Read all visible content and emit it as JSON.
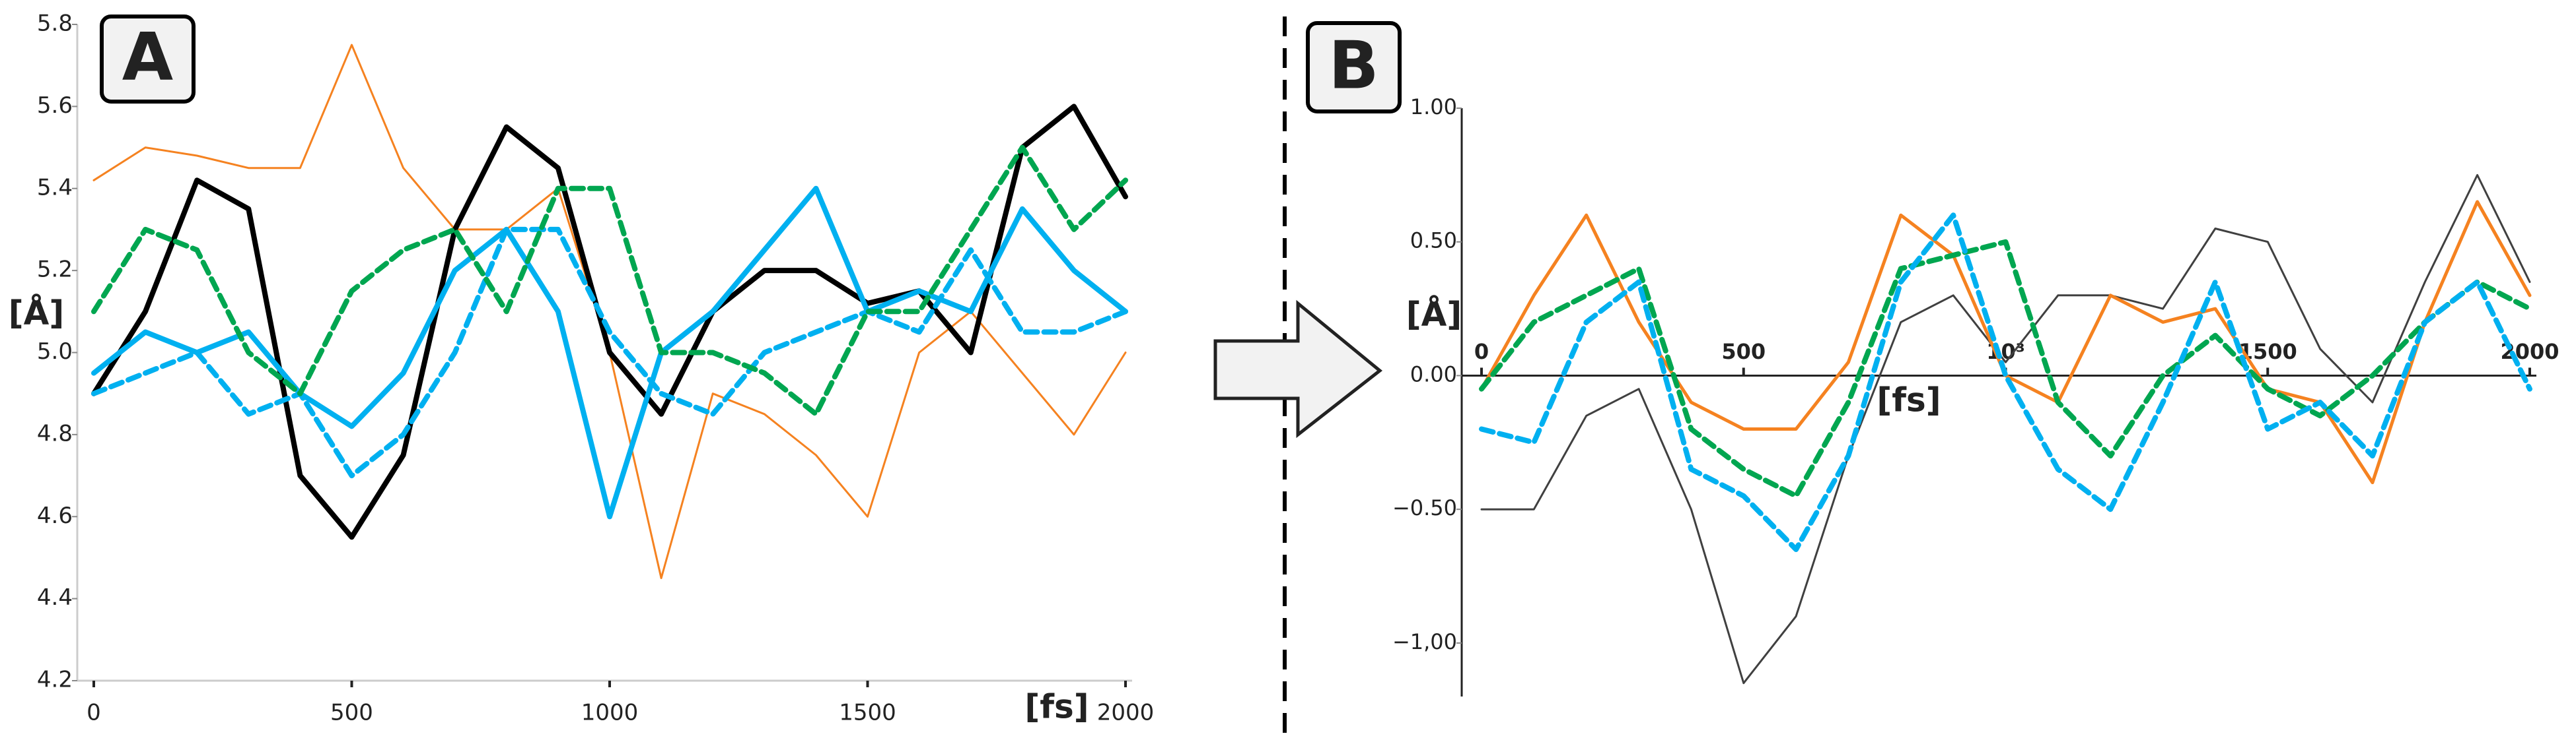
{
  "chart_data": [
    {
      "type": "line",
      "title": "A",
      "x_label": "[fs]",
      "y_label": "[Å]",
      "x": [
        0,
        100,
        200,
        300,
        400,
        500,
        600,
        700,
        800,
        900,
        1000,
        1100,
        1200,
        1300,
        1400,
        1500,
        1600,
        1700,
        1800,
        1900,
        2000
      ],
      "xlim": [
        0,
        2000
      ],
      "xticks": [
        0,
        500,
        1000,
        1500,
        2000
      ],
      "ylim": [
        4.2,
        5.8
      ],
      "yticks": [
        4.2,
        4.4,
        4.6,
        4.8,
        {
          "value": 5,
          "label": "5.0"
        },
        5.2,
        5.4,
        5.6,
        5.8
      ],
      "series": [
        {
          "color": "#f58220",
          "style": "solid",
          "width": "thin",
          "values": [
            5.42,
            5.5,
            5.48,
            5.45,
            5.45,
            5.75,
            5.45,
            5.3,
            5.3,
            5.4,
            5.0,
            4.45,
            4.9,
            4.85,
            4.75,
            4.6,
            5.0,
            5.1,
            4.95,
            4.8,
            5.0
          ]
        },
        {
          "color": "#000000",
          "style": "solid",
          "width": "thick",
          "values": [
            4.9,
            5.1,
            5.42,
            5.35,
            4.7,
            4.55,
            4.75,
            5.3,
            5.55,
            5.45,
            5.0,
            4.85,
            5.1,
            5.2,
            5.2,
            5.12,
            5.15,
            5.0,
            5.5,
            5.6,
            5.38
          ]
        },
        {
          "color": "#00b0f0",
          "style": "solid",
          "width": "thick",
          "values": [
            4.95,
            5.05,
            5.0,
            5.05,
            4.9,
            4.82,
            4.95,
            5.2,
            5.3,
            5.1,
            4.6,
            5.0,
            5.1,
            5.25,
            5.4,
            5.1,
            5.15,
            5.1,
            5.35,
            5.2,
            5.1
          ]
        },
        {
          "color": "#00b0f0",
          "style": "dashed",
          "width": "thick",
          "values": [
            4.9,
            4.95,
            5.0,
            4.85,
            4.9,
            4.7,
            4.8,
            5.0,
            5.3,
            5.3,
            5.05,
            4.9,
            4.85,
            5.0,
            5.05,
            5.1,
            5.05,
            5.25,
            5.05,
            5.05,
            5.1
          ]
        },
        {
          "color": "#00a650",
          "style": "dashed",
          "width": "thick",
          "values": [
            5.1,
            5.3,
            5.25,
            5.0,
            4.9,
            5.15,
            5.25,
            5.3,
            5.1,
            5.4,
            5.4,
            5.0,
            5.0,
            4.95,
            4.85,
            5.1,
            5.1,
            5.3,
            5.5,
            5.3,
            5.42
          ]
        }
      ]
    },
    {
      "type": "line",
      "title": "B",
      "x_label": "[fs]",
      "y_label": "[Å]",
      "x": [
        0,
        100,
        200,
        300,
        400,
        500,
        600,
        700,
        800,
        900,
        1000,
        1100,
        1200,
        1300,
        1400,
        1500,
        1600,
        1700,
        1800,
        1900,
        2000
      ],
      "xlim": [
        0,
        2000
      ],
      "xticks": [
        0,
        500,
        {
          "value": 1000,
          "label": "10³"
        },
        1500,
        2000
      ],
      "ylim": [
        -1.2,
        1.0
      ],
      "yticks": [
        {
          "value": -1,
          "label": "−1,00"
        },
        {
          "value": -0.5,
          "label": "−0.50"
        },
        {
          "value": 0,
          "label": "0.00"
        },
        {
          "value": 0.5,
          "label": "0.50"
        },
        {
          "value": 1,
          "label": "1.00"
        }
      ],
      "series": [
        {
          "color": "#404040",
          "style": "solid",
          "width": "thin",
          "values": [
            -0.5,
            -0.5,
            -0.15,
            -0.05,
            -0.5,
            -1.15,
            -0.9,
            -0.3,
            0.2,
            0.3,
            0.05,
            0.3,
            0.3,
            0.25,
            0.55,
            0.5,
            0.1,
            -0.1,
            0.35,
            0.75,
            0.35
          ]
        },
        {
          "color": "#f58220",
          "style": "solid",
          "width": "medium",
          "values": [
            -0.05,
            0.3,
            0.6,
            0.2,
            -0.1,
            -0.2,
            -0.2,
            0.05,
            0.6,
            0.45,
            0.0,
            -0.1,
            0.3,
            0.2,
            0.25,
            -0.05,
            -0.1,
            -0.4,
            0.2,
            0.65,
            0.3
          ]
        },
        {
          "color": "#00a650",
          "style": "dashed",
          "width": "thick",
          "values": [
            -0.05,
            0.2,
            0.3,
            0.4,
            -0.2,
            -0.35,
            -0.45,
            -0.1,
            0.4,
            0.45,
            0.5,
            -0.1,
            -0.3,
            0.0,
            0.15,
            -0.05,
            -0.15,
            0.0,
            0.2,
            0.35,
            0.25
          ]
        },
        {
          "color": "#00b0f0",
          "style": "dashed",
          "width": "thick",
          "values": [
            -0.2,
            -0.25,
            0.2,
            0.35,
            -0.35,
            -0.45,
            -0.65,
            -0.3,
            0.35,
            0.6,
            0.0,
            -0.35,
            -0.5,
            -0.1,
            0.35,
            -0.2,
            -0.1,
            -0.3,
            0.2,
            0.35,
            -0.05
          ]
        }
      ]
    }
  ]
}
